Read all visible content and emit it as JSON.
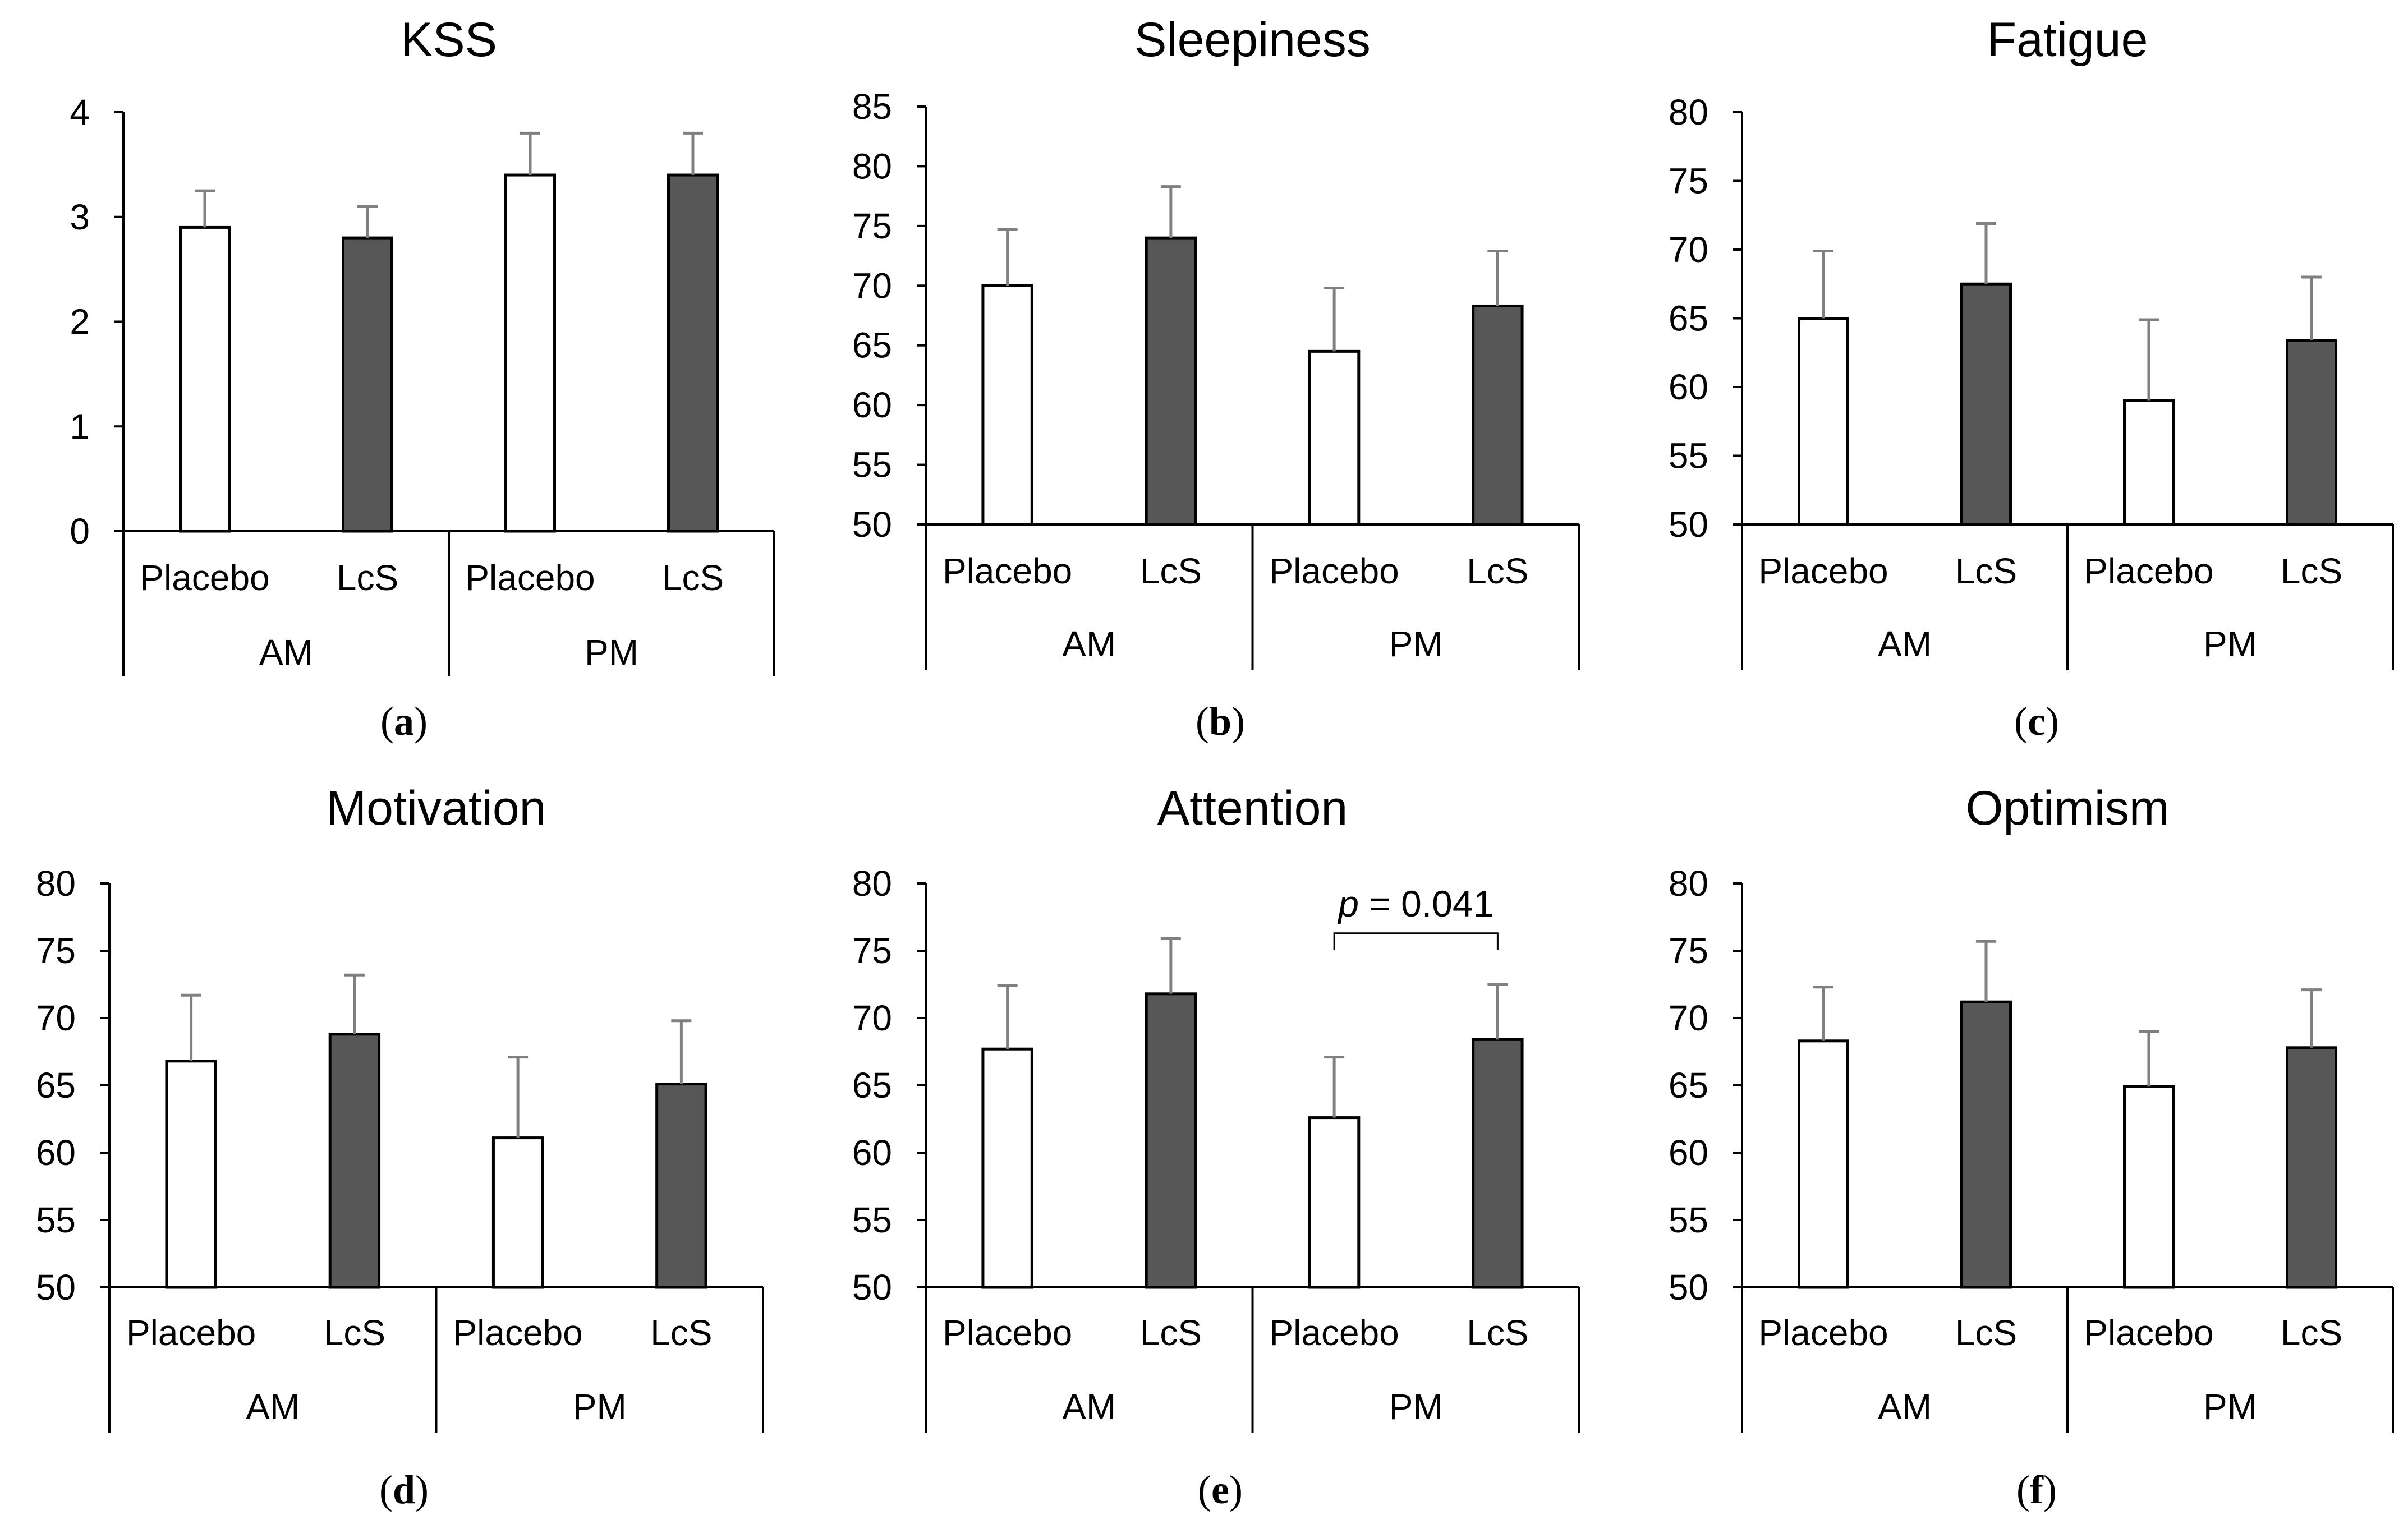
{
  "figure": {
    "colors": {
      "placebo": "#ffffff",
      "lcs": "#575757",
      "axis": "#000000",
      "error": "#808080"
    }
  },
  "chart_data": [
    {
      "type": "bar",
      "title": "KSS",
      "caption": "(a)",
      "caption_letter": "a",
      "groups": [
        "AM",
        "PM"
      ],
      "categories": [
        "Placebo",
        "LcS",
        "Placebo",
        "LcS"
      ],
      "values": [
        2.9,
        2.8,
        3.4,
        3.4
      ],
      "errors": [
        0.35,
        0.3,
        0.4,
        0.4
      ],
      "ylim": [
        0,
        4
      ],
      "yticks": [
        0,
        1,
        2,
        3,
        4
      ]
    },
    {
      "type": "bar",
      "title": "Sleepiness",
      "caption": "(b)",
      "caption_letter": "b",
      "groups": [
        "AM",
        "PM"
      ],
      "categories": [
        "Placebo",
        "LcS",
        "Placebo",
        "LcS"
      ],
      "values": [
        70,
        74,
        64.5,
        68.3
      ],
      "errors": [
        4.7,
        4.3,
        5.3,
        4.6
      ],
      "ylim": [
        50,
        85
      ],
      "yticks": [
        50,
        55,
        60,
        65,
        70,
        75,
        80,
        85
      ]
    },
    {
      "type": "bar",
      "title": "Fatigue",
      "caption": "(c)",
      "caption_letter": "c",
      "groups": [
        "AM",
        "PM"
      ],
      "categories": [
        "Placebo",
        "LcS",
        "Placebo",
        "LcS"
      ],
      "values": [
        65,
        67.5,
        59,
        63.4
      ],
      "errors": [
        4.9,
        4.4,
        5.9,
        4.6
      ],
      "ylim": [
        50,
        80
      ],
      "yticks": [
        50,
        55,
        60,
        65,
        70,
        75,
        80
      ]
    },
    {
      "type": "bar",
      "title": "Motivation",
      "caption": "(d)",
      "caption_letter": "d",
      "groups": [
        "AM",
        "PM"
      ],
      "categories": [
        "Placebo",
        "LcS",
        "Placebo",
        "LcS"
      ],
      "values": [
        66.8,
        68.8,
        61.1,
        65.1
      ],
      "errors": [
        4.9,
        4.4,
        6.0,
        4.7
      ],
      "ylim": [
        50,
        80
      ],
      "yticks": [
        50,
        55,
        60,
        65,
        70,
        75,
        80
      ]
    },
    {
      "type": "bar",
      "title": "Attention",
      "caption": "(e)",
      "caption_letter": "e",
      "groups": [
        "AM",
        "PM"
      ],
      "categories": [
        "Placebo",
        "LcS",
        "Placebo",
        "LcS"
      ],
      "values": [
        67.7,
        71.8,
        62.6,
        68.4
      ],
      "errors": [
        4.7,
        4.1,
        4.5,
        4.1
      ],
      "ylim": [
        50,
        80
      ],
      "yticks": [
        50,
        55,
        60,
        65,
        70,
        75,
        80
      ],
      "annotation": {
        "prefix": "p",
        "text": " = 0.041",
        "from_bar": 2,
        "to_bar": 3,
        "at_value": 76.3
      }
    },
    {
      "type": "bar",
      "title": "Optimism",
      "caption": "(f)",
      "caption_letter": "f",
      "groups": [
        "AM",
        "PM"
      ],
      "categories": [
        "Placebo",
        "LcS",
        "Placebo",
        "LcS"
      ],
      "values": [
        68.3,
        71.2,
        64.9,
        67.8
      ],
      "errors": [
        4.0,
        4.5,
        4.1,
        4.3
      ],
      "ylim": [
        50,
        80
      ],
      "yticks": [
        50,
        55,
        60,
        65,
        70,
        75,
        80
      ]
    }
  ]
}
